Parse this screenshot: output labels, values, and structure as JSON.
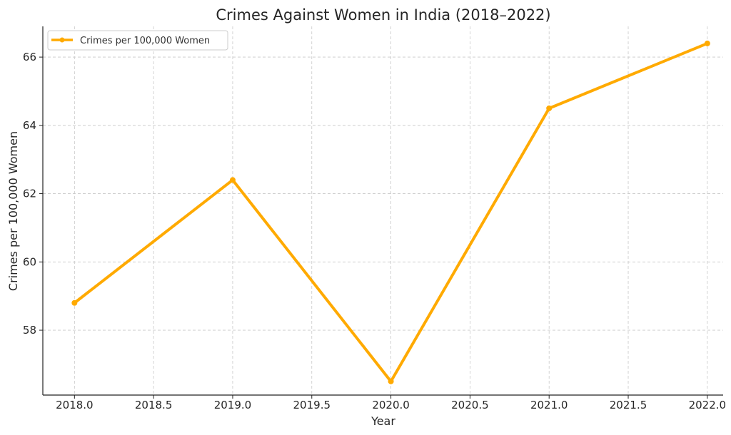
{
  "chart_data": {
    "type": "line",
    "title": "Crimes Against Women in India (2018–2022)",
    "xlabel": "Year",
    "ylabel": "Crimes per 100,000 Women",
    "x": [
      2018,
      2019,
      2020,
      2021,
      2022
    ],
    "series": [
      {
        "name": "Crimes per 100,000 Women",
        "values": [
          58.8,
          62.4,
          56.5,
          64.5,
          66.4
        ]
      }
    ],
    "xlim": [
      2017.8,
      2022.1
    ],
    "ylim": [
      56.1,
      66.9
    ],
    "xticks": [
      2018.0,
      2018.5,
      2019.0,
      2019.5,
      2020.0,
      2020.5,
      2021.0,
      2021.5,
      2022.0
    ],
    "xtick_labels": [
      "2018.0",
      "2018.5",
      "2019.0",
      "2019.5",
      "2020.0",
      "2020.5",
      "2021.0",
      "2021.5",
      "2022.0"
    ],
    "yticks": [
      58,
      60,
      62,
      64,
      66
    ],
    "ytick_labels": [
      "58",
      "60",
      "62",
      "64",
      "66"
    ],
    "grid": true,
    "legend": "top-left",
    "color": "#FFAA00"
  }
}
